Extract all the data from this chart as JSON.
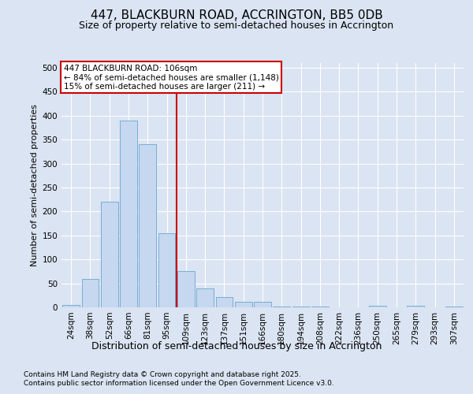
{
  "title": "447, BLACKBURN ROAD, ACCRINGTON, BB5 0DB",
  "subtitle": "Size of property relative to semi-detached houses in Accrington",
  "xlabel": "Distribution of semi-detached houses by size in Accrington",
  "ylabel": "Number of semi-detached properties",
  "bins": [
    "24sqm",
    "38sqm",
    "52sqm",
    "66sqm",
    "81sqm",
    "95sqm",
    "109sqm",
    "123sqm",
    "137sqm",
    "151sqm",
    "166sqm",
    "180sqm",
    "194sqm",
    "208sqm",
    "222sqm",
    "236sqm",
    "250sqm",
    "265sqm",
    "279sqm",
    "293sqm",
    "307sqm"
  ],
  "values": [
    5,
    60,
    220,
    390,
    340,
    155,
    75,
    40,
    22,
    12,
    12,
    2,
    2,
    1,
    0,
    0,
    4,
    0,
    4,
    0,
    1
  ],
  "bar_color": "#c5d8f0",
  "bar_edge_color": "#7aadd4",
  "vline_color": "#cc0000",
  "vline_x_index": 6,
  "annotation_title": "447 BLACKBURN ROAD: 106sqm",
  "annotation_line1": "← 84% of semi-detached houses are smaller (1,148)",
  "annotation_line2": "15% of semi-detached houses are larger (211) →",
  "ylim": [
    0,
    510
  ],
  "yticks": [
    0,
    50,
    100,
    150,
    200,
    250,
    300,
    350,
    400,
    450,
    500
  ],
  "footnote1": "Contains HM Land Registry data © Crown copyright and database right 2025.",
  "footnote2": "Contains public sector information licensed under the Open Government Licence v3.0.",
  "bg_color": "#dae4f2",
  "grid_color": "#ffffff",
  "title_fontsize": 11,
  "subtitle_fontsize": 9,
  "ylabel_fontsize": 8,
  "xlabel_fontsize": 9,
  "tick_fontsize": 7.5,
  "annot_fontsize": 7.5,
  "footnote_fontsize": 6.5
}
